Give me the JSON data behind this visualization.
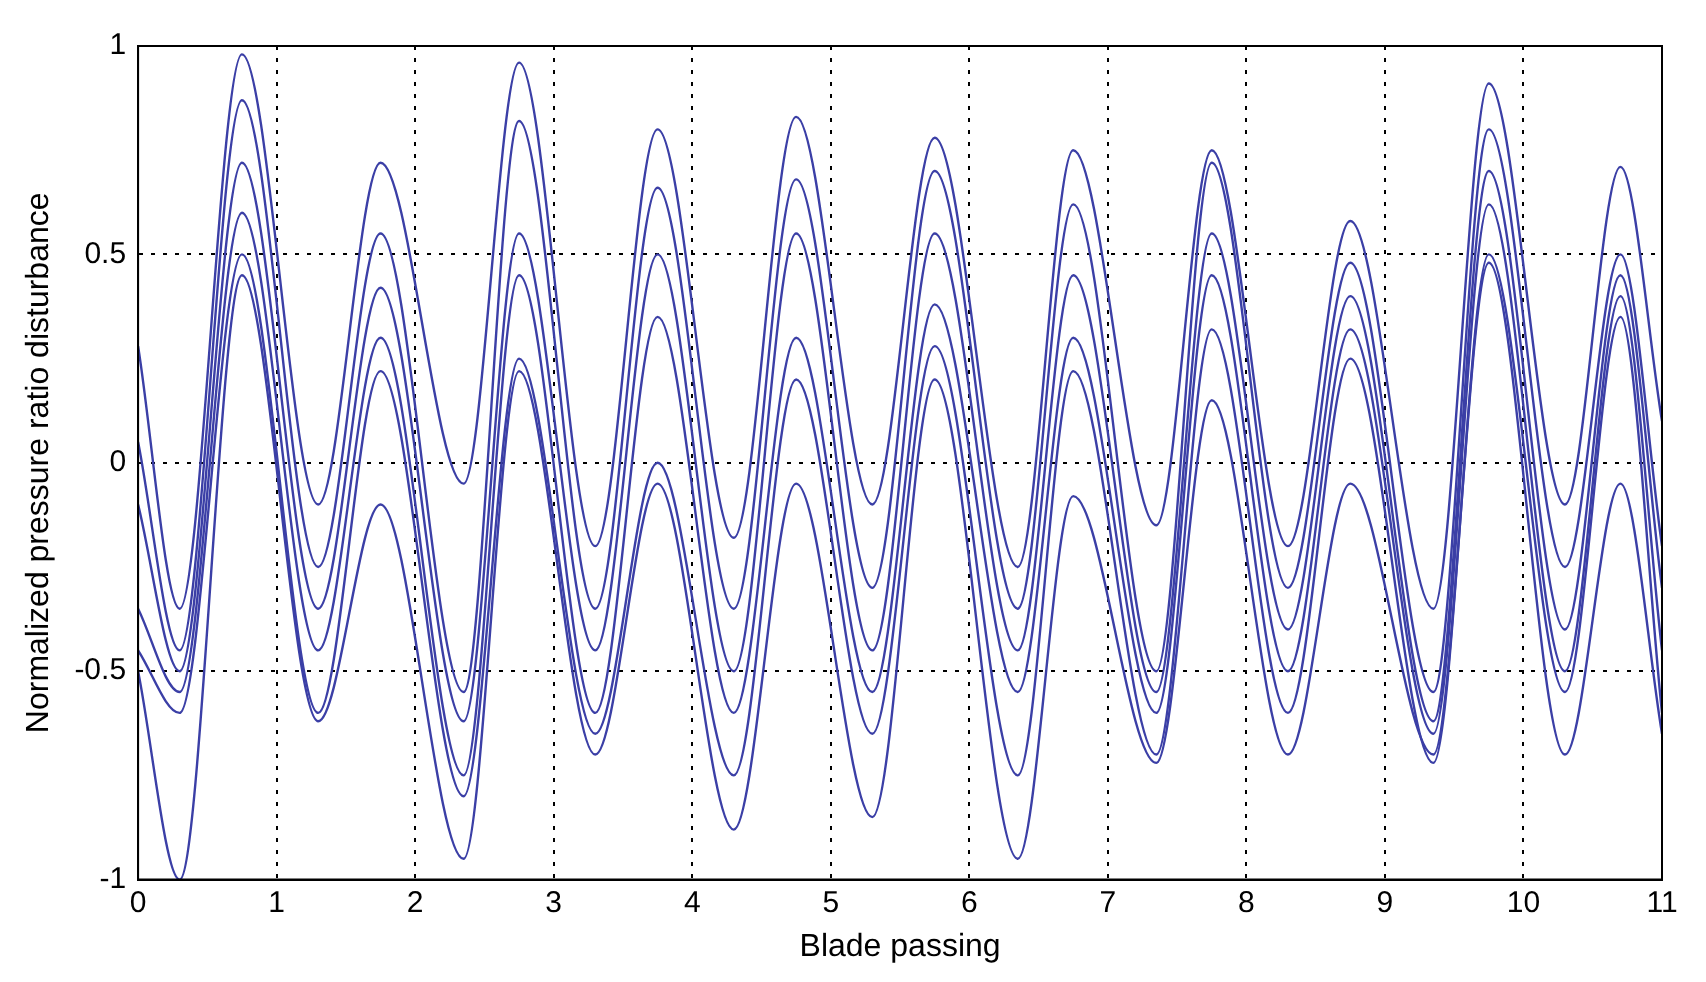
{
  "chart_data": {
    "type": "line",
    "xlabel": "Blade passing",
    "ylabel": "Normalized pressure ratio disturbance",
    "x": [
      0,
      0.3,
      0.75,
      1.3,
      1.75,
      2.35,
      2.75,
      3.3,
      3.75,
      4.3,
      4.75,
      5.3,
      5.75,
      6.35,
      6.75,
      7.35,
      7.75,
      8.3,
      8.75,
      9.35,
      9.75,
      10.3,
      10.7,
      11
    ],
    "series": [
      {
        "color": "#3b3fa6",
        "values": [
          0.28,
          -0.35,
          0.98,
          -0.1,
          0.72,
          -0.05,
          0.96,
          -0.2,
          0.8,
          -0.18,
          0.83,
          -0.1,
          0.78,
          -0.25,
          0.75,
          -0.15,
          0.75,
          -0.2,
          0.58,
          -0.35,
          0.91,
          -0.1,
          0.71,
          0.1
        ]
      },
      {
        "color": "#3b3fa6",
        "values": [
          0.05,
          -0.45,
          0.87,
          -0.25,
          0.55,
          -0.55,
          0.82,
          -0.35,
          0.66,
          -0.35,
          0.68,
          -0.3,
          0.7,
          -0.35,
          0.62,
          -0.5,
          0.72,
          -0.3,
          0.48,
          -0.55,
          0.8,
          -0.25,
          0.5,
          -0.2
        ]
      },
      {
        "color": "#3b3fa6",
        "values": [
          -0.1,
          -0.5,
          0.72,
          -0.35,
          0.42,
          -0.62,
          0.55,
          -0.45,
          0.5,
          -0.5,
          0.55,
          -0.45,
          0.55,
          -0.45,
          0.45,
          -0.55,
          0.55,
          -0.4,
          0.4,
          -0.62,
          0.7,
          -0.4,
          0.45,
          -0.3
        ]
      },
      {
        "color": "#3b3fa6",
        "values": [
          -0.35,
          -0.55,
          0.6,
          -0.45,
          0.3,
          -0.75,
          0.45,
          -0.6,
          0.35,
          -0.6,
          0.3,
          -0.55,
          0.38,
          -0.55,
          0.3,
          -0.6,
          0.45,
          -0.5,
          0.32,
          -0.65,
          0.62,
          -0.5,
          0.4,
          -0.45
        ]
      },
      {
        "color": "#3b3fa6",
        "values": [
          -0.45,
          -0.6,
          0.5,
          -0.6,
          0.22,
          -0.8,
          0.25,
          -0.65,
          0.0,
          -0.75,
          0.2,
          -0.65,
          0.28,
          -0.75,
          0.22,
          -0.7,
          0.32,
          -0.6,
          0.25,
          -0.72,
          0.5,
          -0.55,
          0.35,
          -0.6
        ]
      },
      {
        "color": "#3b3fa6",
        "values": [
          -0.5,
          -1.0,
          0.45,
          -0.62,
          -0.1,
          -0.95,
          0.22,
          -0.7,
          -0.05,
          -0.88,
          -0.05,
          -0.85,
          0.2,
          -0.95,
          -0.08,
          -0.72,
          0.15,
          -0.7,
          -0.05,
          -0.7,
          0.48,
          -0.7,
          -0.05,
          -0.65
        ]
      }
    ],
    "xlim": [
      0,
      11
    ],
    "xticks": [
      0,
      1,
      2,
      3,
      4,
      5,
      6,
      7,
      8,
      9,
      10,
      11
    ],
    "ylim": [
      -1,
      1
    ],
    "yticks": [
      -1,
      -0.5,
      0,
      0.5,
      1
    ],
    "grid": true,
    "marker": "none",
    "line_style": "solid"
  }
}
